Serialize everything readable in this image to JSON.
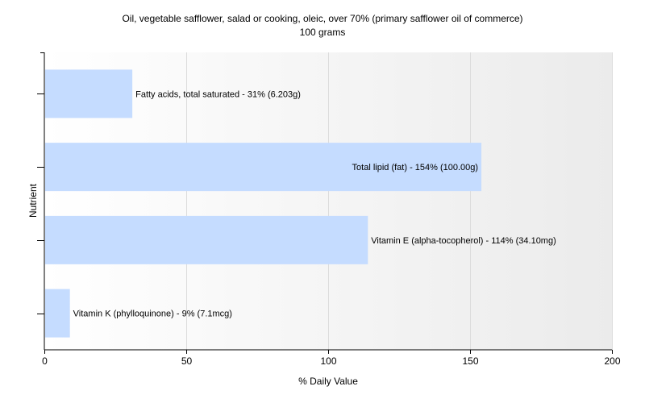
{
  "chart_data": {
    "type": "bar",
    "orientation": "horizontal",
    "title": "Oil, vegetable safflower, salad or cooking, oleic, over 70% (primary safflower oil of commerce)",
    "subtitle": "100 grams",
    "xlabel": "% Daily Value",
    "ylabel": "Nutrient",
    "xlim": [
      0,
      200
    ],
    "xticks": [
      0,
      50,
      100,
      150,
      200
    ],
    "grid": true,
    "bar_color": "#c5dcff",
    "background_gradient": [
      "#ffffff",
      "#ebebeb"
    ],
    "categories": [
      "Fatty acids, total saturated",
      "Total lipid (fat)",
      "Vitamin E (alpha-tocopherol)",
      "Vitamin K (phylloquinone)"
    ],
    "values": [
      31,
      154,
      114,
      9
    ],
    "labels": [
      "Fatty acids, total saturated - 31% (6.203g)",
      "Total lipid (fat) - 154% (100.00g)",
      "Vitamin E (alpha-tocopherol) - 114% (34.10mg)",
      "Vitamin K (phylloquinone) - 9% (7.1mcg)"
    ]
  }
}
